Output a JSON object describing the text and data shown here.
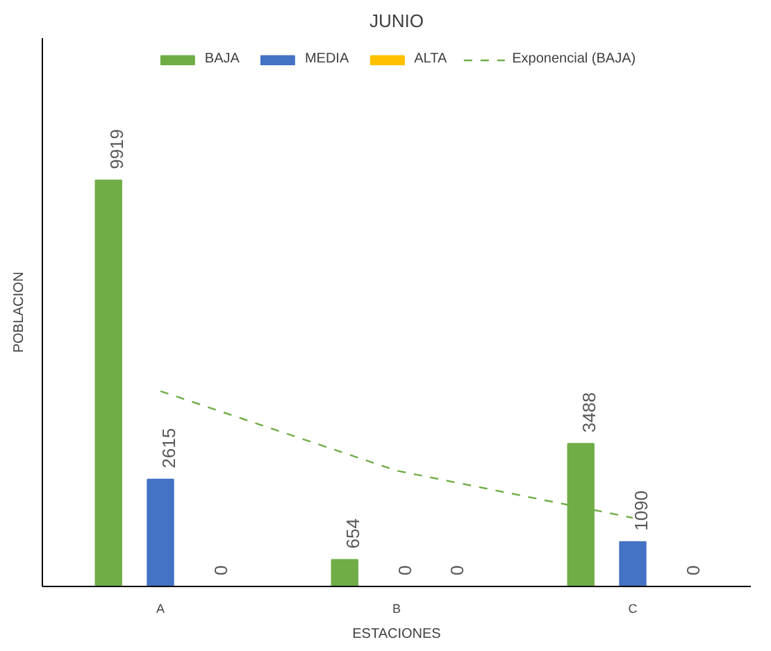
{
  "chart_data": {
    "type": "bar",
    "title": "JUNIO",
    "xlabel": "ESTACIONES",
    "ylabel": "POBLACION",
    "categories": [
      "A",
      "B",
      "C"
    ],
    "series": [
      {
        "name": "BAJA",
        "color": "#70ad47",
        "values": [
          9919,
          654,
          3488
        ],
        "value_labels": [
          "9919",
          "654",
          "3488"
        ]
      },
      {
        "name": "MEDIA",
        "color": "#4472c4",
        "values": [
          2615,
          0,
          1090
        ],
        "value_labels": [
          "2615",
          "0",
          "1090"
        ]
      },
      {
        "name": "ALTA",
        "color": "#ffc000",
        "values": [
          0,
          0,
          0
        ],
        "value_labels": [
          "0",
          "0",
          "0"
        ]
      },
      {
        "name": "Exponencial (BAJA)",
        "type": "line",
        "color": "#70ad47",
        "line_style": "dashed",
        "values": [
          4770,
          2828,
          1677
        ]
      }
    ],
    "tick_labels": "x",
    "grid": false,
    "legend": "top"
  }
}
